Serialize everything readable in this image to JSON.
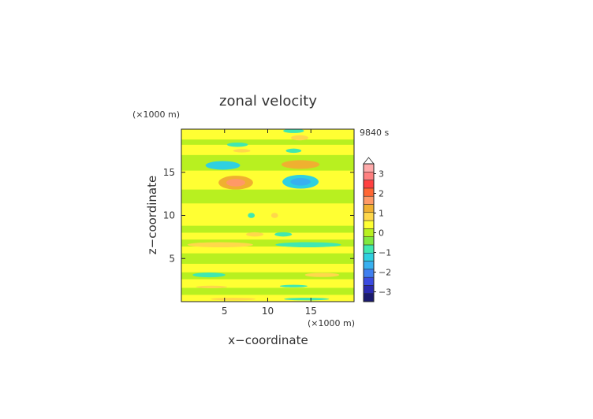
{
  "chart_data": {
    "type": "heatmap",
    "title": "zonal velocity",
    "xlabel": "x−coordinate",
    "ylabel": "z−coordinate",
    "x_unit": "(×1000 m)",
    "y_unit": "(×1000 m)",
    "time_label": "9840 s",
    "xlim": [
      0,
      20
    ],
    "ylim": [
      0,
      20
    ],
    "x_ticks": [
      5,
      10,
      15
    ],
    "y_ticks": [
      5,
      10,
      15
    ],
    "grid": false,
    "legend": "right",
    "colorbar": {
      "tick_values": [
        3,
        2,
        1,
        0,
        -1,
        -2,
        -3
      ],
      "tick_labels": [
        "3",
        "2",
        "1",
        "0",
        "−1",
        "−2",
        "−3"
      ],
      "range": [
        -3.5,
        3.5
      ],
      "colors": [
        "#1a1a6e",
        "#2a2ab0",
        "#3a4be0",
        "#3f7ff0",
        "#38b0f0",
        "#2fd0e0",
        "#40e8b0",
        "#80e840",
        "#b8f020",
        "#ffff33",
        "#ffd84a",
        "#f0b030",
        "#ff9966",
        "#ff6633",
        "#ff4040",
        "#ff8080",
        "#ffaaaa"
      ]
    },
    "background_value": 0.2,
    "bands": [
      {
        "z": [
          0.0,
          0.8
        ],
        "value": 0.3
      },
      {
        "z": [
          0.8,
          1.6
        ],
        "value": -0.1
      },
      {
        "z": [
          1.6,
          2.6
        ],
        "value": 0.3
      },
      {
        "z": [
          2.6,
          3.4
        ],
        "value": -0.1
      },
      {
        "z": [
          3.4,
          4.4
        ],
        "value": 0.3
      },
      {
        "z": [
          4.4,
          5.6
        ],
        "value": -0.1
      },
      {
        "z": [
          5.6,
          6.4
        ],
        "value": 0.3
      },
      {
        "z": [
          6.4,
          7.2
        ],
        "value": -0.1
      },
      {
        "z": [
          7.2,
          8.0
        ],
        "value": 0.3
      },
      {
        "z": [
          8.0,
          8.8
        ],
        "value": -0.1
      },
      {
        "z": [
          8.8,
          11.4
        ],
        "value": 0.3
      },
      {
        "z": [
          11.4,
          13.0
        ],
        "value": -0.1
      },
      {
        "z": [
          13.0,
          15.2
        ],
        "value": 0.3
      },
      {
        "z": [
          15.2,
          17.0
        ],
        "value": -0.1
      },
      {
        "z": [
          17.0,
          18.2
        ],
        "value": 0.3
      },
      {
        "z": [
          18.2,
          18.8
        ],
        "value": -0.1
      },
      {
        "z": [
          18.8,
          20.0
        ],
        "value": 0.3
      }
    ],
    "blobs": [
      {
        "x": 6.5,
        "z": 18.2,
        "rx": 1.2,
        "rz": 0.25,
        "value": -0.8
      },
      {
        "x": 13.7,
        "z": 19.0,
        "rx": 1.0,
        "rz": 0.3,
        "value": 0.8
      },
      {
        "x": 13.0,
        "z": 19.8,
        "rx": 1.2,
        "rz": 0.25,
        "value": -0.8
      },
      {
        "x": 7.0,
        "z": 17.5,
        "rx": 1.0,
        "rz": 0.2,
        "value": 0.8
      },
      {
        "x": 13.0,
        "z": 17.5,
        "rx": 0.9,
        "rz": 0.25,
        "value": -0.8
      },
      {
        "x": 4.8,
        "z": 15.8,
        "rx": 2.0,
        "rz": 0.5,
        "value": -1.1
      },
      {
        "x": 13.8,
        "z": 15.9,
        "rx": 2.2,
        "rz": 0.5,
        "value": 1.1
      },
      {
        "x": 6.3,
        "z": 13.8,
        "rx": 2.0,
        "rz": 0.8,
        "value": 1.2
      },
      {
        "x": 13.8,
        "z": 13.9,
        "rx": 2.1,
        "rz": 0.8,
        "value": -1.3
      },
      {
        "x": 8.1,
        "z": 10.0,
        "rx": 0.4,
        "rz": 0.3,
        "value": -0.8
      },
      {
        "x": 10.8,
        "z": 10.0,
        "rx": 0.4,
        "rz": 0.3,
        "value": 0.8
      },
      {
        "x": 8.5,
        "z": 7.8,
        "rx": 1.0,
        "rz": 0.25,
        "value": 0.8
      },
      {
        "x": 11.8,
        "z": 7.8,
        "rx": 1.0,
        "rz": 0.25,
        "value": -0.8
      },
      {
        "x": 4.5,
        "z": 6.6,
        "rx": 3.8,
        "rz": 0.3,
        "value": 0.8
      },
      {
        "x": 14.7,
        "z": 6.6,
        "rx": 3.8,
        "rz": 0.3,
        "value": -0.8
      },
      {
        "x": 3.2,
        "z": 3.1,
        "rx": 1.9,
        "rz": 0.28,
        "value": -0.8
      },
      {
        "x": 16.3,
        "z": 3.1,
        "rx": 2.0,
        "rz": 0.25,
        "value": 0.8
      },
      {
        "x": 3.5,
        "z": 1.7,
        "rx": 1.8,
        "rz": 0.15,
        "value": 0.8
      },
      {
        "x": 13.0,
        "z": 1.8,
        "rx": 1.6,
        "rz": 0.15,
        "value": -0.8
      },
      {
        "x": 6.0,
        "z": 0.3,
        "rx": 2.6,
        "rz": 0.15,
        "value": 0.8
      },
      {
        "x": 14.5,
        "z": 0.3,
        "rx": 2.6,
        "rz": 0.15,
        "value": -0.8
      }
    ]
  }
}
